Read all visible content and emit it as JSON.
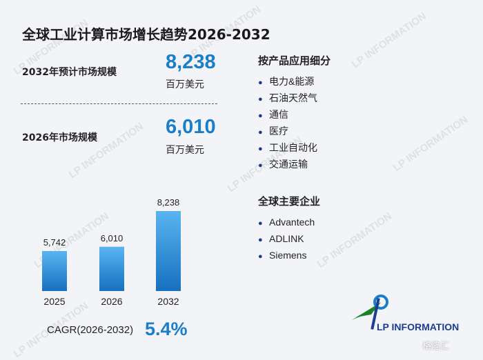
{
  "title": "全球工业计算市场增长趋势2026-2032",
  "stats": [
    {
      "label": "2032年预计市场规模",
      "value": "8,238",
      "unit": "百万美元"
    },
    {
      "label": "2026年市场规模",
      "value": "6,010",
      "unit": "百万美元"
    }
  ],
  "segments": {
    "title": "按产品应用细分",
    "items": [
      "电力&能源",
      "石油天然气",
      "通信",
      "医疗",
      "工业自动化",
      "交通运输"
    ]
  },
  "companies": {
    "title": "全球主要企业",
    "items": [
      "Advantech",
      "ADLINK",
      "Siemens"
    ]
  },
  "cagr": {
    "label": "CAGR(2026-2032)",
    "value": "5.4%"
  },
  "logo": {
    "text": "LP INFORMATION"
  },
  "watermark": "LP INFORMATION",
  "source_mark": "格隆汇",
  "colors": {
    "accent": "#1a7fc8",
    "bar_top": "#5ab4f0",
    "bar_bottom": "#1670c0"
  },
  "chart_data": {
    "type": "bar",
    "categories": [
      "2025",
      "2026",
      "2032"
    ],
    "values": [
      5742,
      6010,
      8238
    ],
    "data_labels": [
      "5,742",
      "6,010",
      "8,238"
    ],
    "title": "",
    "xlabel": "",
    "ylabel": "",
    "ylim": [
      0,
      9000
    ],
    "grid": false,
    "legend": "none"
  }
}
